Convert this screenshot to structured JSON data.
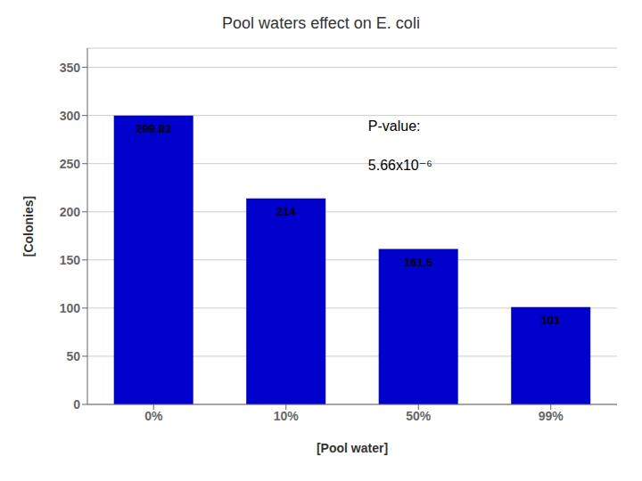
{
  "chart_data": {
    "type": "bar",
    "title": "Pool waters effect on E. coli",
    "categories": [
      "0%",
      "10%",
      "50%",
      "99%"
    ],
    "values": [
      299.83,
      214,
      161.5,
      101
    ],
    "color": "#0000CC",
    "xlabel": "[Pool water]",
    "ylabel": "[Colonies]",
    "ylim": [
      0,
      370
    ],
    "yticks": [
      0,
      50,
      100,
      150,
      200,
      250,
      300,
      350
    ],
    "grid": true,
    "data_labels": true,
    "annotations": [
      "P-value:",
      "5.66x10⁻⁶"
    ]
  }
}
